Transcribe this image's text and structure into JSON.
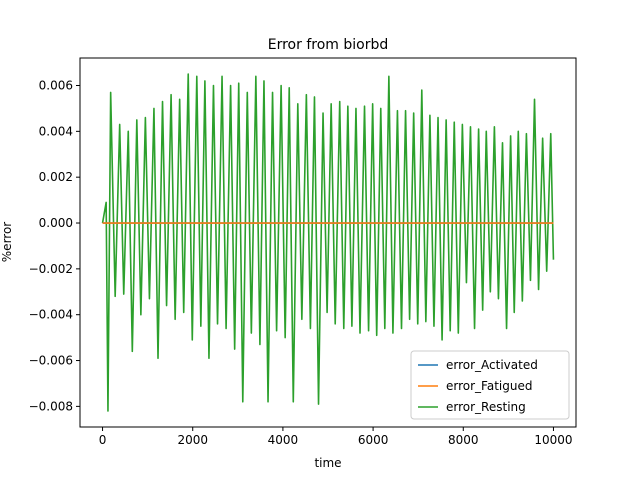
{
  "chart_data": {
    "type": "line",
    "title": "Error from biorbd",
    "xlabel": "time",
    "ylabel": "%error",
    "xlim": [
      -500,
      10500
    ],
    "ylim": [
      -0.0089,
      0.0072
    ],
    "xticks": [
      0,
      2000,
      4000,
      6000,
      8000,
      10000
    ],
    "xtick_labels": [
      "0",
      "2000",
      "4000",
      "6000",
      "8000",
      "10000"
    ],
    "yticks": [
      -0.008,
      -0.006,
      -0.004,
      -0.002,
      0.0,
      0.002,
      0.004,
      0.006
    ],
    "ytick_labels": [
      "−0.008",
      "−0.006",
      "−0.004",
      "−0.002",
      "0.000",
      "0.002",
      "0.004",
      "0.006"
    ],
    "grid": false,
    "legend_position": "lower-right",
    "series": [
      {
        "name": "error_Activated",
        "color": "#1f77b4",
        "x": [
          0,
          10000
        ],
        "y": [
          0.0,
          0.0
        ]
      },
      {
        "name": "error_Fatigued",
        "color": "#ff7f0e",
        "x": [
          0,
          10000
        ],
        "y": [
          0.0,
          0.0
        ]
      },
      {
        "name": "error_Resting",
        "color": "#2ca02c",
        "x": [
          0,
          80,
          120,
          180,
          280,
          380,
          470,
          570,
          660,
          760,
          850,
          950,
          1040,
          1140,
          1230,
          1330,
          1420,
          1520,
          1610,
          1710,
          1800,
          1900,
          1990,
          2090,
          2180,
          2270,
          2360,
          2460,
          2550,
          2650,
          2740,
          2840,
          2930,
          3020,
          3110,
          3210,
          3300,
          3400,
          3490,
          3580,
          3670,
          3770,
          3860,
          3960,
          4050,
          4140,
          4230,
          4330,
          4420,
          4520,
          4610,
          4700,
          4790,
          4890,
          4980,
          5070,
          5160,
          5260,
          5350,
          5440,
          5530,
          5620,
          5710,
          5810,
          5900,
          5990,
          6080,
          6170,
          6260,
          6350,
          6440,
          6540,
          6630,
          6720,
          6810,
          6900,
          6990,
          7080,
          7170,
          7260,
          7350,
          7440,
          7530,
          7620,
          7710,
          7800,
          7890,
          7980,
          8070,
          8160,
          8250,
          8340,
          8430,
          8510,
          8600,
          8690,
          8780,
          8870,
          8960,
          9050,
          9130,
          9220,
          9310,
          9400,
          9490,
          9580,
          9670,
          9760,
          9850,
          9940,
          10000
        ],
        "y": [
          0.0,
          0.0009,
          -0.0082,
          0.0057,
          -0.0032,
          0.0043,
          -0.0031,
          0.004,
          -0.0056,
          0.0045,
          -0.004,
          0.0046,
          -0.0033,
          0.005,
          -0.0059,
          0.0053,
          -0.0036,
          0.0056,
          -0.0042,
          0.0054,
          -0.0039,
          0.0065,
          -0.0051,
          0.0064,
          -0.0045,
          0.0062,
          -0.0059,
          0.006,
          -0.0044,
          0.0064,
          -0.0046,
          0.006,
          -0.0055,
          0.0061,
          -0.0078,
          0.0057,
          -0.0048,
          0.0064,
          -0.0053,
          0.0062,
          -0.0078,
          0.0057,
          -0.0047,
          0.006,
          -0.005,
          0.0059,
          -0.0078,
          0.0052,
          -0.0042,
          0.0056,
          -0.0046,
          0.0055,
          -0.0079,
          0.0048,
          -0.0039,
          0.0052,
          -0.0044,
          0.0053,
          -0.0046,
          0.0051,
          -0.0045,
          0.005,
          -0.0048,
          0.0051,
          -0.0047,
          0.0052,
          -0.0049,
          0.005,
          -0.0046,
          0.0064,
          -0.0048,
          0.0049,
          -0.0046,
          0.0049,
          -0.0042,
          0.0048,
          -0.0044,
          0.0058,
          -0.0043,
          0.0047,
          -0.0045,
          0.0046,
          -0.0051,
          0.0045,
          -0.0047,
          0.0044,
          -0.0048,
          0.0043,
          -0.0026,
          0.0042,
          -0.0046,
          0.0041,
          -0.0038,
          0.004,
          -0.003,
          0.0042,
          -0.0033,
          0.0035,
          -0.0046,
          0.0038,
          -0.0039,
          0.004,
          -0.0034,
          0.0039,
          -0.0025,
          0.0054,
          -0.0029,
          0.0037,
          -0.0021,
          0.0039,
          -0.0016
        ]
      }
    ]
  }
}
